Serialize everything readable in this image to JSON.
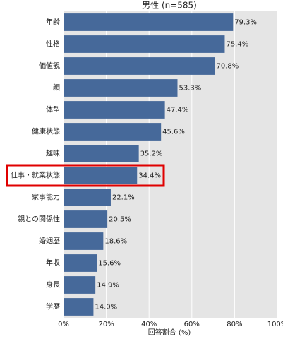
{
  "chart_data": {
    "type": "barh",
    "title": "男性 (n=585)",
    "xlabel": "回答割合 (%)",
    "categories": [
      "年齢",
      "性格",
      "価値観",
      "顔",
      "体型",
      "健康状態",
      "趣味",
      "仕事・就業状態",
      "家事能力",
      "親との関係性",
      "婚姻歴",
      "年収",
      "身長",
      "学歴"
    ],
    "values": [
      79.3,
      75.4,
      70.8,
      53.3,
      47.4,
      45.6,
      35.2,
      34.4,
      22.1,
      20.5,
      18.6,
      15.6,
      14.9,
      14.0
    ],
    "value_labels": [
      "79.3%",
      "75.4%",
      "70.8%",
      "53.3%",
      "47.4%",
      "45.6%",
      "35.2%",
      "34.4%",
      "22.1%",
      "20.5%",
      "18.6%",
      "15.6%",
      "14.9%",
      "14.0%"
    ],
    "color": "#46699a",
    "highlight": 7,
    "highlight_color": "#e00000",
    "xlim": [
      0,
      100
    ],
    "xticks": [
      {
        "value": 0,
        "label": "0%"
      },
      {
        "value": 20,
        "label": "20%"
      },
      {
        "value": 40,
        "label": "40%"
      },
      {
        "value": 60,
        "label": "60%"
      },
      {
        "value": 80,
        "label": "80%"
      },
      {
        "value": 100,
        "label": "100%"
      }
    ],
    "grid": true
  }
}
